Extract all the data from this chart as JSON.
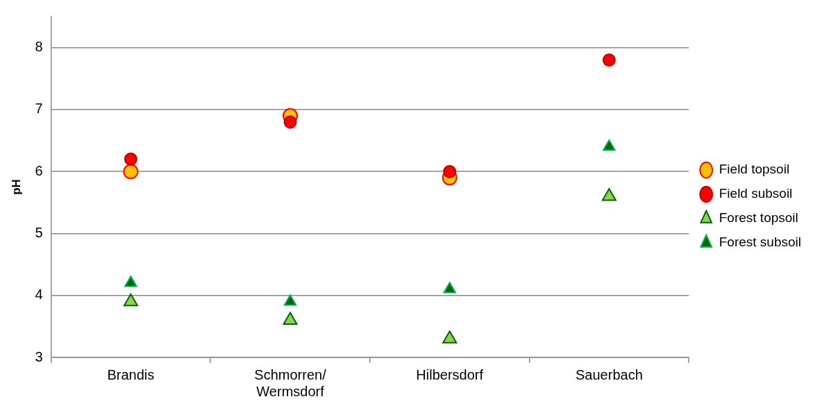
{
  "chart_data": {
    "type": "scatter",
    "ylabel": "pH",
    "categories": [
      "Brandis",
      "Schmorren/Wermsdorf",
      "Hilbersdorf",
      "Sauerbach"
    ],
    "series": [
      {
        "name": "Field topsoil",
        "color": "#ffc000",
        "marker": "circle",
        "values": [
          6.0,
          6.9,
          5.9,
          null
        ]
      },
      {
        "name": "Field subsoil",
        "color": "#ff0000",
        "marker": "circle",
        "values": [
          6.2,
          6.8,
          6.0,
          7.8
        ]
      },
      {
        "name": "Forest topsoil",
        "color": "#92d050",
        "marker": "triangle",
        "values": [
          3.9,
          3.6,
          3.3,
          5.6
        ]
      },
      {
        "name": "Forest subsoil",
        "color": "#006600",
        "marker": "triangle",
        "values": [
          4.2,
          3.9,
          4.1,
          6.4
        ]
      }
    ],
    "ylim": [
      3,
      8.5
    ],
    "yticks": [
      3,
      4,
      5,
      6,
      7,
      8
    ],
    "grid": "y",
    "legend": "right"
  }
}
